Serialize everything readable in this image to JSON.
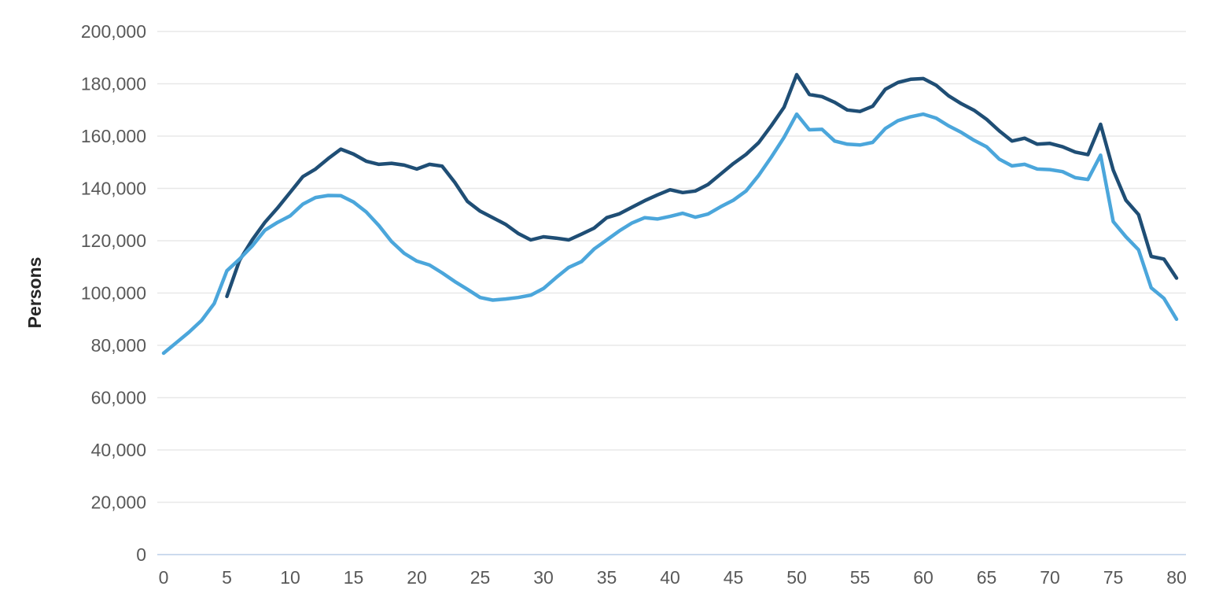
{
  "chart_data": {
    "type": "line",
    "title": "",
    "xlabel": "",
    "ylabel": "Persons",
    "xlim": [
      0,
      80
    ],
    "ylim": [
      0,
      200000
    ],
    "x_ticks": [
      0,
      5,
      10,
      15,
      20,
      25,
      30,
      35,
      40,
      45,
      50,
      55,
      60,
      65,
      70,
      75,
      80
    ],
    "y_ticks": [
      0,
      20000,
      40000,
      60000,
      80000,
      100000,
      120000,
      140000,
      160000,
      180000,
      200000
    ],
    "y_tick_labels": [
      "0",
      "20,000",
      "40,000",
      "60,000",
      "80,000",
      "100,000",
      "120,000",
      "140,000",
      "160,000",
      "180,000",
      "200,000"
    ],
    "grid": "horizontal",
    "legend_position": "none",
    "series": [
      {
        "name": "dark-navy-line",
        "color": "#1f4e75",
        "start_x": 5,
        "values": [
          98700,
          112500,
          120300,
          127000,
          132500,
          138500,
          144500,
          147400,
          151400,
          155000,
          153100,
          150400,
          149200,
          149600,
          148900,
          147400,
          149200,
          148500,
          142300,
          135000,
          131300,
          128800,
          126300,
          122800,
          120300,
          121500,
          121000,
          120300,
          122500,
          124800,
          128800,
          130300,
          132800,
          135300,
          137500,
          139500,
          138400,
          139000,
          141500,
          145500,
          149500,
          153000,
          157500,
          164000,
          171000,
          183500,
          175900,
          175100,
          172900,
          170000,
          169400,
          171400,
          177900,
          180500,
          181700,
          182000,
          179500,
          175400,
          172400,
          169900,
          166400,
          162000,
          158100,
          159200,
          156900,
          157200,
          155900,
          153900,
          152900,
          164500,
          147000,
          135500,
          130000,
          114000,
          113000,
          105700
        ]
      },
      {
        "name": "light-blue-line",
        "color": "#4ba6db",
        "start_x": 0,
        "values": [
          77000,
          81000,
          85000,
          89500,
          96000,
          108500,
          113000,
          118000,
          124000,
          127000,
          129500,
          134000,
          136500,
          137300,
          137200,
          134800,
          131000,
          125800,
          119700,
          115200,
          112200,
          110700,
          107700,
          104400,
          101400,
          98300,
          97300,
          97700,
          98300,
          99200,
          101700,
          105900,
          109800,
          112000,
          116800,
          120300,
          123800,
          126800,
          128800,
          128300,
          129300,
          130500,
          129000,
          130200,
          133000,
          135500,
          139000,
          145000,
          152000,
          159500,
          168400,
          162400,
          162600,
          158100,
          156900,
          156600,
          157600,
          162900,
          165900,
          167400,
          168400,
          166900,
          163900,
          161400,
          158400,
          155900,
          151200,
          148600,
          149200,
          147400,
          147200,
          146400,
          144100,
          143400,
          152700,
          127300,
          121500,
          116500,
          102000,
          98000,
          90000
        ]
      }
    ]
  },
  "styles": {
    "background": "#ffffff",
    "gridline_color": "#e8e8e8",
    "baseline_color": "#ccdaee",
    "tick_label_color": "#595959",
    "axis_title_color": "#262626"
  }
}
